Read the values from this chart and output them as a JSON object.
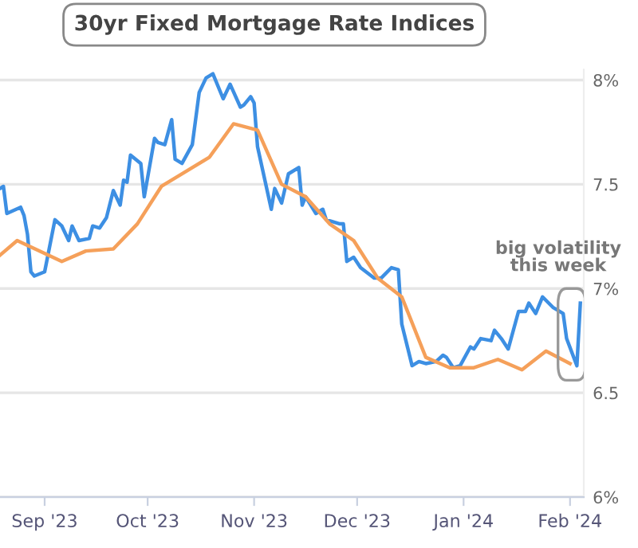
{
  "chart_data": {
    "type": "line",
    "title": "30yr Fixed Mortgage Rate Indices",
    "annotations": [
      "big volatility\nthis week"
    ],
    "series": [
      {
        "color": "#3d8fe3",
        "x": [
          "2023-08-19",
          "2023-08-20",
          "2023-08-21",
          "2023-08-25",
          "2023-08-26",
          "2023-08-27",
          "2023-08-28",
          "2023-08-29",
          "2023-09-01",
          "2023-09-04",
          "2023-09-06",
          "2023-09-08",
          "2023-09-09",
          "2023-09-11",
          "2023-09-14",
          "2023-09-15",
          "2023-09-17",
          "2023-09-19",
          "2023-09-21",
          "2023-09-23",
          "2023-09-24",
          "2023-09-25",
          "2023-09-26",
          "2023-09-29",
          "2023-09-30",
          "2023-10-03",
          "2023-10-04",
          "2023-10-06",
          "2023-10-08",
          "2023-10-09",
          "2023-10-11",
          "2023-10-14",
          "2023-10-16",
          "2023-10-18",
          "2023-10-20",
          "2023-10-23",
          "2023-10-25",
          "2023-10-28",
          "2023-10-29",
          "2023-10-31",
          "2023-11-01",
          "2023-11-02",
          "2023-11-06",
          "2023-11-07",
          "2023-11-09",
          "2023-11-11",
          "2023-11-14",
          "2023-11-15",
          "2023-11-16",
          "2023-11-19",
          "2023-11-21",
          "2023-11-22",
          "2023-11-26",
          "2023-11-27",
          "2023-11-28",
          "2023-11-30",
          "2023-12-02",
          "2023-12-06",
          "2023-12-08",
          "2023-12-11",
          "2023-12-13",
          "2023-12-14",
          "2023-12-17",
          "2023-12-19",
          "2023-12-21",
          "2023-12-24",
          "2023-12-26",
          "2023-12-27",
          "2023-12-29",
          "2023-12-31",
          "2024-01-03",
          "2024-01-04",
          "2024-01-06",
          "2024-01-09",
          "2024-01-10",
          "2024-01-12",
          "2024-01-14",
          "2024-01-17",
          "2024-01-19",
          "2024-01-20",
          "2024-01-22",
          "2024-01-24",
          "2024-01-27",
          "2024-01-30",
          "2024-01-31",
          "2024-02-03",
          "2024-02-04"
        ],
        "values": [
          7.48,
          7.49,
          7.36,
          7.39,
          7.35,
          7.26,
          7.08,
          7.06,
          7.08,
          7.33,
          7.3,
          7.23,
          7.3,
          7.23,
          7.24,
          7.3,
          7.29,
          7.34,
          7.47,
          7.4,
          7.52,
          7.51,
          7.64,
          7.6,
          7.44,
          7.72,
          7.7,
          7.69,
          7.81,
          7.62,
          7.6,
          7.69,
          7.94,
          8.01,
          8.03,
          7.91,
          7.98,
          7.87,
          7.88,
          7.92,
          7.89,
          7.68,
          7.38,
          7.48,
          7.41,
          7.55,
          7.58,
          7.4,
          7.44,
          7.36,
          7.38,
          7.33,
          7.31,
          7.31,
          7.13,
          7.15,
          7.1,
          7.05,
          7.05,
          7.1,
          7.09,
          6.83,
          6.63,
          6.65,
          6.64,
          6.65,
          6.68,
          6.67,
          6.62,
          6.63,
          6.72,
          6.71,
          6.76,
          6.75,
          6.8,
          6.76,
          6.71,
          6.89,
          6.89,
          6.93,
          6.88,
          6.96,
          6.91,
          6.88,
          6.76,
          6.63,
          6.93
        ]
      },
      {
        "color": "#f5a05a",
        "x": [
          "2023-08-19",
          "2023-08-24",
          "2023-09-06",
          "2023-09-13",
          "2023-09-21",
          "2023-09-28",
          "2023-10-05",
          "2023-10-12",
          "2023-10-19",
          "2023-10-26",
          "2023-11-02",
          "2023-11-09",
          "2023-11-16",
          "2023-11-23",
          "2023-11-30",
          "2023-12-07",
          "2023-12-14",
          "2023-12-21",
          "2023-12-28",
          "2024-01-04",
          "2024-01-11",
          "2024-01-18",
          "2024-01-25",
          "2024-02-01"
        ],
        "values": [
          7.16,
          7.23,
          7.13,
          7.18,
          7.19,
          7.31,
          7.49,
          7.56,
          7.63,
          7.79,
          7.76,
          7.5,
          7.44,
          7.31,
          7.23,
          7.05,
          6.96,
          6.67,
          6.62,
          6.62,
          6.66,
          6.61,
          6.7,
          6.64
        ]
      }
    ],
    "xlim": [
      "2023-08-19",
      "2024-02-05"
    ],
    "xticks": [
      {
        "value": "2023-09-01",
        "label": "Sep '23"
      },
      {
        "value": "2023-10-01",
        "label": "Oct '23"
      },
      {
        "value": "2023-11-01",
        "label": "Nov '23"
      },
      {
        "value": "2023-12-01",
        "label": "Dec '23"
      },
      {
        "value": "2024-01-01",
        "label": "Jan '24"
      },
      {
        "value": "2024-02-01",
        "label": "Feb '24"
      }
    ],
    "ylim": [
      6,
      8.05
    ],
    "yticks": [
      {
        "value": 6,
        "label": "6%"
      },
      {
        "value": 6.5,
        "label": "6.5"
      },
      {
        "value": 7,
        "label": "7%"
      },
      {
        "value": 7.5,
        "label": "7.5"
      },
      {
        "value": 8,
        "label": "8%"
      }
    ],
    "grid": "y",
    "legend": false,
    "marker": "none",
    "line_style": "solid"
  }
}
